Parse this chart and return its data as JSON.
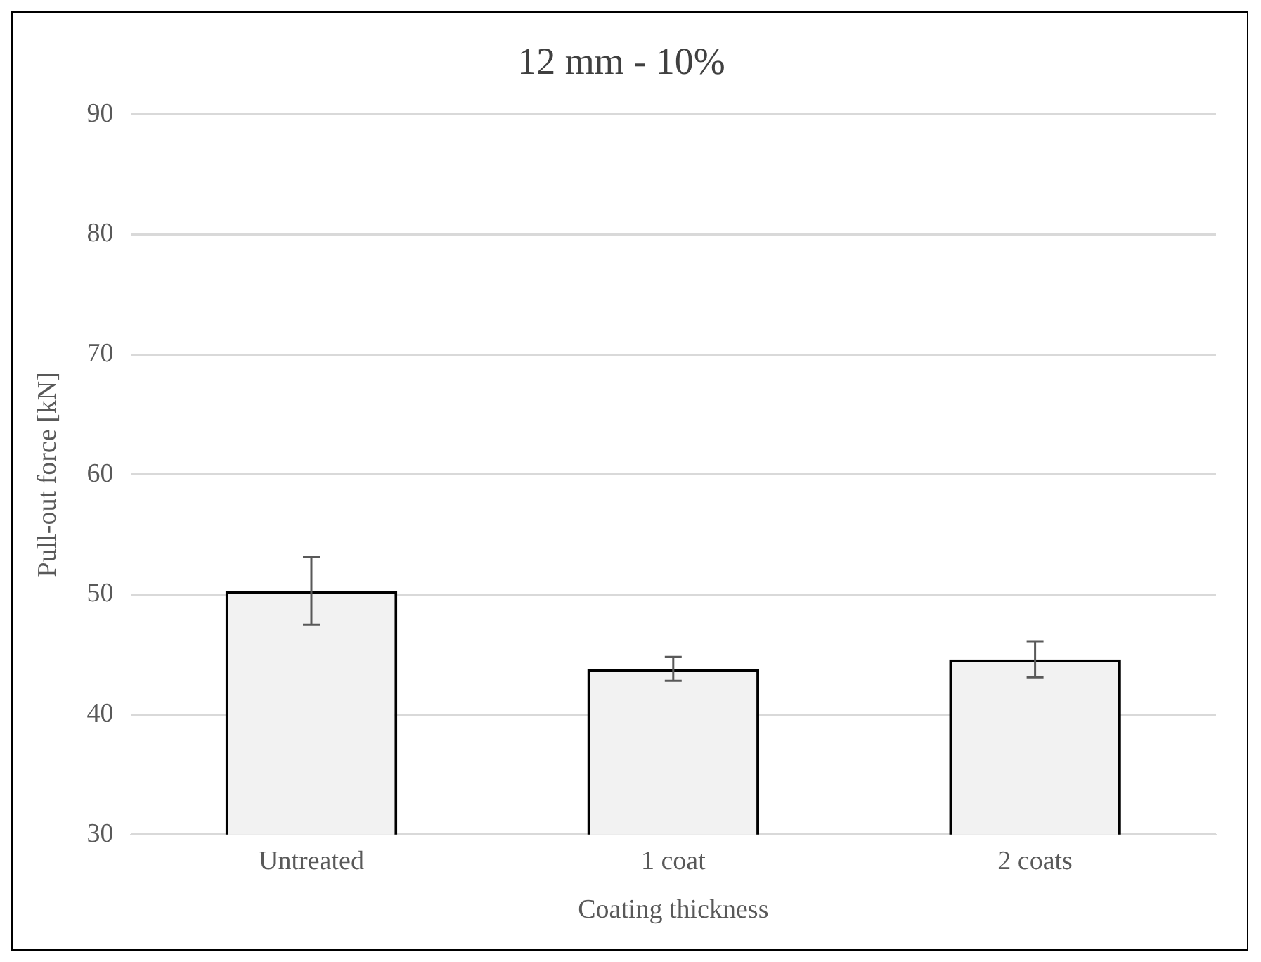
{
  "chart_data": {
    "type": "bar",
    "title": "12 mm - 10%",
    "xlabel": "Coating thickness",
    "ylabel": "Pull-out force [kN]",
    "categories": [
      "Untreated",
      "1 coat",
      "2 coats"
    ],
    "values": [
      50.3,
      43.8,
      44.6
    ],
    "errors": [
      2.8,
      1.0,
      1.5
    ],
    "color": "#f2f2f2",
    "ylim": [
      30,
      90
    ],
    "yticks": [
      30,
      40,
      50,
      60,
      70,
      80,
      90
    ],
    "grid": "y",
    "legend": false
  }
}
